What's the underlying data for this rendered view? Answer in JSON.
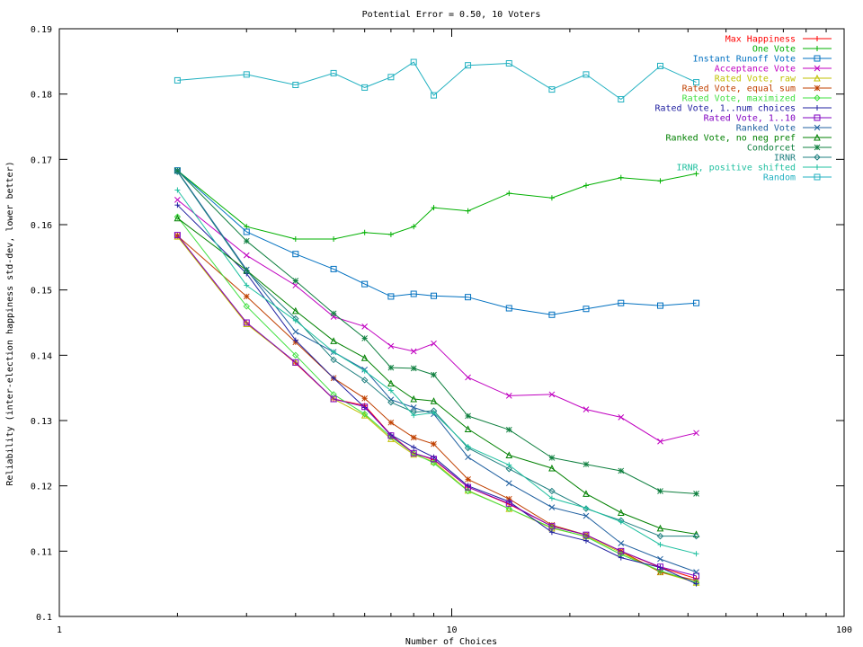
{
  "chart_data": {
    "type": "line",
    "title": "Potential Error = 0.50, 10 Voters",
    "xlabel": "Number of Choices",
    "ylabel": "Reliability (inter-election happiness std-dev, lower better)",
    "xscale": "log",
    "xlim": [
      1,
      100
    ],
    "ylim": [
      0.1,
      0.19
    ],
    "xticks": [
      1,
      10,
      100
    ],
    "yticks": [
      0.1,
      0.11,
      0.12,
      0.13,
      0.14,
      0.15,
      0.16,
      0.17,
      0.18,
      0.19
    ],
    "ytick_labels": [
      "0.1",
      "0.11",
      "0.12",
      "0.13",
      "0.14",
      "0.15",
      "0.16",
      "0.17",
      "0.18",
      "0.19"
    ],
    "xtick_labels": [
      "1",
      "10",
      "100"
    ],
    "grid": false,
    "legend_position": "top-right",
    "x": [
      2,
      3,
      4,
      5,
      6,
      7,
      8,
      9,
      11,
      14,
      18,
      22,
      27,
      34,
      42
    ],
    "series": [
      {
        "name": "Max Happiness",
        "color": "#ff0000",
        "marker": "plus",
        "values": [
          0.1583,
          0.145,
          0.1388,
          0.1333,
          0.1323,
          0.1278,
          0.125,
          0.124,
          0.1198,
          0.1172,
          0.1138,
          0.1125,
          0.11,
          0.1075,
          0.1058
        ]
      },
      {
        "name": "One Vote",
        "color": "#00b000",
        "marker": "plus",
        "values": [
          0.1683,
          0.1597,
          0.1578,
          0.1578,
          0.1588,
          0.1585,
          0.1597,
          0.1626,
          0.1621,
          0.1648,
          0.1641,
          0.166,
          0.1672,
          0.1667,
          0.1678
        ]
      },
      {
        "name": "Instant Runoff Vote",
        "color": "#0070c0",
        "marker": "square",
        "values": [
          0.1683,
          0.1589,
          0.1555,
          0.1532,
          0.1509,
          0.149,
          0.1494,
          0.1491,
          0.1489,
          0.1472,
          0.1462,
          0.1471,
          0.148,
          0.1476,
          0.148
        ]
      },
      {
        "name": "Acceptance Vote",
        "color": "#c000c0",
        "marker": "x",
        "values": [
          0.1638,
          0.1553,
          0.1507,
          0.1459,
          0.1444,
          0.1414,
          0.1406,
          0.1418,
          0.1366,
          0.1338,
          0.134,
          0.1317,
          0.1305,
          0.1268,
          0.1281
        ]
      },
      {
        "name": "Rated Vote, raw",
        "color": "#c0c000",
        "marker": "triangle",
        "values": [
          0.1582,
          0.1448,
          0.1389,
          0.1333,
          0.1308,
          0.1272,
          0.1248,
          0.1237,
          0.1193,
          0.1165,
          0.1135,
          0.1123,
          0.1098,
          0.1068,
          0.1052
        ]
      },
      {
        "name": "Rated Vote, equal sum",
        "color": "#c04000",
        "marker": "star",
        "values": [
          0.1583,
          0.149,
          0.142,
          0.1365,
          0.1334,
          0.1297,
          0.1274,
          0.1264,
          0.121,
          0.118,
          0.114,
          0.1125,
          0.11,
          0.1068,
          0.1055
        ]
      },
      {
        "name": "Rated Vote, maximized",
        "color": "#40e040",
        "marker": "diamond",
        "values": [
          0.1612,
          0.1475,
          0.14,
          0.134,
          0.131,
          0.1275,
          0.125,
          0.1235,
          0.1192,
          0.1165,
          0.1136,
          0.1122,
          0.1095,
          0.107,
          0.1052
        ]
      },
      {
        "name": "Rated Vote, 1..num choices",
        "color": "#2020a0",
        "marker": "plus",
        "values": [
          0.163,
          0.1525,
          0.1423,
          0.1365,
          0.132,
          0.1278,
          0.1259,
          0.1244,
          0.12,
          0.1176,
          0.1129,
          0.1116,
          0.109,
          0.1075,
          0.105
        ]
      },
      {
        "name": "Rated Vote, 1..10",
        "color": "#8000c0",
        "marker": "square",
        "values": [
          0.1584,
          0.145,
          0.1389,
          0.1333,
          0.1321,
          0.1277,
          0.125,
          0.1241,
          0.1198,
          0.1173,
          0.1138,
          0.1125,
          0.11,
          0.1076,
          0.1062
        ]
      },
      {
        "name": "Ranked Vote",
        "color": "#2060a0",
        "marker": "x",
        "values": [
          0.1682,
          0.1531,
          0.1436,
          0.1405,
          0.1378,
          0.1332,
          0.132,
          0.131,
          0.1244,
          0.1204,
          0.1167,
          0.1154,
          0.1112,
          0.1088,
          0.1068
        ]
      },
      {
        "name": "Ranked Vote, no neg pref",
        "color": "#008000",
        "marker": "triangle",
        "values": [
          0.161,
          0.153,
          0.1468,
          0.1422,
          0.1396,
          0.1357,
          0.1333,
          0.133,
          0.1287,
          0.1247,
          0.1227,
          0.1188,
          0.1159,
          0.1135,
          0.1126
        ]
      },
      {
        "name": "Condorcet",
        "color": "#108040",
        "marker": "star",
        "values": [
          0.1683,
          0.1575,
          0.1514,
          0.1464,
          0.1426,
          0.1381,
          0.138,
          0.137,
          0.1307,
          0.1286,
          0.1243,
          0.1233,
          0.1223,
          0.1192,
          0.1188
        ]
      },
      {
        "name": "IRNR",
        "color": "#208080",
        "marker": "diamond",
        "values": [
          0.1681,
          0.1529,
          0.1456,
          0.1393,
          0.1362,
          0.1328,
          0.1313,
          0.1315,
          0.1258,
          0.1226,
          0.1192,
          0.1165,
          0.1147,
          0.1123,
          0.1123
        ]
      },
      {
        "name": "IRNR, positive shifted",
        "color": "#20c0a0",
        "marker": "plus",
        "values": [
          0.1653,
          0.1507,
          0.1453,
          0.1405,
          0.1376,
          0.1346,
          0.1308,
          0.1312,
          0.126,
          0.1232,
          0.1181,
          0.1166,
          0.1145,
          0.111,
          0.1096
        ]
      },
      {
        "name": "Random",
        "color": "#20b0c0",
        "marker": "square",
        "values": [
          0.1821,
          0.183,
          0.1814,
          0.1832,
          0.181,
          0.1826,
          0.1849,
          0.1798,
          0.1844,
          0.1847,
          0.1807,
          0.183,
          0.1792,
          0.1843,
          0.1818
        ]
      }
    ]
  }
}
